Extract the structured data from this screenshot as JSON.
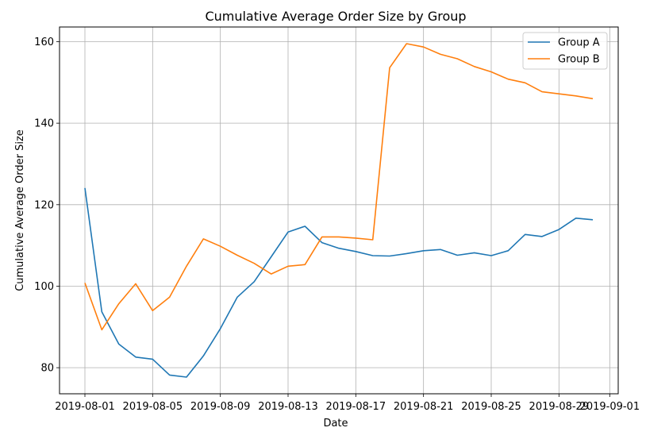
{
  "chart_data": {
    "type": "line",
    "title": "Cumulative Average Order Size by Group",
    "xlabel": "Date",
    "ylabel": "Cumulative Average Order Size",
    "x": [
      "2019-08-01",
      "2019-08-02",
      "2019-08-03",
      "2019-08-04",
      "2019-08-05",
      "2019-08-06",
      "2019-08-07",
      "2019-08-08",
      "2019-08-09",
      "2019-08-10",
      "2019-08-11",
      "2019-08-12",
      "2019-08-13",
      "2019-08-14",
      "2019-08-15",
      "2019-08-16",
      "2019-08-17",
      "2019-08-18",
      "2019-08-19",
      "2019-08-20",
      "2019-08-21",
      "2019-08-22",
      "2019-08-23",
      "2019-08-24",
      "2019-08-25",
      "2019-08-26",
      "2019-08-27",
      "2019-08-28",
      "2019-08-29",
      "2019-08-30",
      "2019-08-31"
    ],
    "series": [
      {
        "name": "Group A",
        "color": "#1f77b4",
        "values": [
          124.1,
          93.7,
          85.8,
          82.6,
          82.1,
          78.2,
          77.7,
          82.9,
          89.6,
          97.3,
          101.1,
          107.2,
          113.3,
          114.7,
          110.7,
          109.3,
          108.5,
          107.5,
          107.4,
          108.0,
          108.7,
          109.0,
          107.6,
          108.2,
          107.5,
          108.7,
          112.7,
          112.2,
          113.9,
          116.7,
          116.3
        ]
      },
      {
        "name": "Group B",
        "color": "#ff7f0e",
        "values": [
          100.8,
          89.3,
          95.7,
          100.6,
          94.0,
          97.3,
          104.9,
          111.6,
          109.8,
          107.6,
          105.6,
          103.0,
          104.9,
          105.3,
          112.1,
          112.1,
          111.8,
          111.4,
          153.6,
          159.5,
          158.7,
          156.9,
          155.8,
          153.9,
          152.6,
          150.8,
          149.9,
          147.7,
          147.2,
          146.7,
          146.0
        ]
      }
    ],
    "xticks": [
      "2019-08-01",
      "2019-08-05",
      "2019-08-09",
      "2019-08-13",
      "2019-08-17",
      "2019-08-21",
      "2019-08-25",
      "2019-08-29",
      "2019-09-01"
    ],
    "yticks": [
      80,
      100,
      120,
      140,
      160
    ],
    "xlim": [
      "2019-07-30T12:00",
      "2019-09-01T12:00"
    ],
    "ylim": [
      73.6,
      163.6
    ],
    "grid": true,
    "legend": "top-right"
  }
}
